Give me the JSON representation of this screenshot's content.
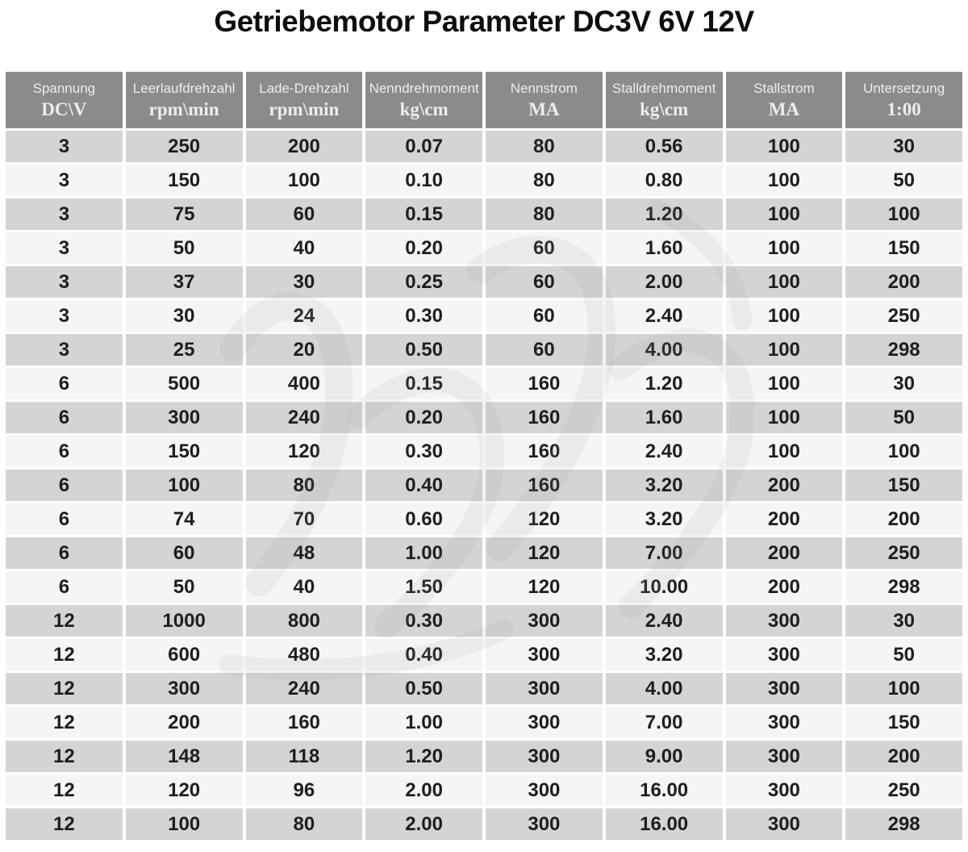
{
  "page_title": "Getriebemotor Parameter DC3V 6V 12V",
  "colors": {
    "header_bg": "#8b8b8b",
    "header_text": "#ededed",
    "row_dark": "#d4d4d4",
    "row_light": "#f5f5f5",
    "cell_text": "#1e1e1e",
    "title_text": "#0e0e0e"
  },
  "chart_data": {
    "type": "table",
    "title": "Getriebemotor Parameter DC3V 6V 12V",
    "columns": [
      {
        "label": "Spannung",
        "unit": "DC\\V"
      },
      {
        "label": "Leerlaufdrehzahl",
        "unit": "rpm\\min"
      },
      {
        "label": "Lade-Drehzahl",
        "unit": "rpm\\min"
      },
      {
        "label": "Nenndrehmoment",
        "unit": "kg\\cm"
      },
      {
        "label": "Nennstrom",
        "unit": "MA"
      },
      {
        "label": "Stalldrehmoment",
        "unit": "kg\\cm"
      },
      {
        "label": "Stallstrom",
        "unit": "MA"
      },
      {
        "label": "Untersetzung",
        "unit": "1:00"
      }
    ],
    "rows": [
      [
        "3",
        "250",
        "200",
        "0.07",
        "80",
        "0.56",
        "100",
        "30"
      ],
      [
        "3",
        "150",
        "100",
        "0.10",
        "80",
        "0.80",
        "100",
        "50"
      ],
      [
        "3",
        "75",
        "60",
        "0.15",
        "80",
        "1.20",
        "100",
        "100"
      ],
      [
        "3",
        "50",
        "40",
        "0.20",
        "60",
        "1.60",
        "100",
        "150"
      ],
      [
        "3",
        "37",
        "30",
        "0.25",
        "60",
        "2.00",
        "100",
        "200"
      ],
      [
        "3",
        "30",
        "24",
        "0.30",
        "60",
        "2.40",
        "100",
        "250"
      ],
      [
        "3",
        "25",
        "20",
        "0.50",
        "60",
        "4.00",
        "100",
        "298"
      ],
      [
        "6",
        "500",
        "400",
        "0.15",
        "160",
        "1.20",
        "100",
        "30"
      ],
      [
        "6",
        "300",
        "240",
        "0.20",
        "160",
        "1.60",
        "100",
        "50"
      ],
      [
        "6",
        "150",
        "120",
        "0.30",
        "160",
        "2.40",
        "100",
        "100"
      ],
      [
        "6",
        "100",
        "80",
        "0.40",
        "160",
        "3.20",
        "200",
        "150"
      ],
      [
        "6",
        "74",
        "70",
        "0.60",
        "120",
        "3.20",
        "200",
        "200"
      ],
      [
        "6",
        "60",
        "48",
        "1.00",
        "120",
        "7.00",
        "200",
        "250"
      ],
      [
        "6",
        "50",
        "40",
        "1.50",
        "120",
        "10.00",
        "200",
        "298"
      ],
      [
        "12",
        "1000",
        "800",
        "0.30",
        "300",
        "2.40",
        "300",
        "30"
      ],
      [
        "12",
        "600",
        "480",
        "0.40",
        "300",
        "3.20",
        "300",
        "50"
      ],
      [
        "12",
        "300",
        "240",
        "0.50",
        "300",
        "4.00",
        "300",
        "100"
      ],
      [
        "12",
        "200",
        "160",
        "1.00",
        "300",
        "7.00",
        "300",
        "150"
      ],
      [
        "12",
        "148",
        "118",
        "1.20",
        "300",
        "9.00",
        "300",
        "200"
      ],
      [
        "12",
        "120",
        "96",
        "2.00",
        "300",
        "16.00",
        "300",
        "250"
      ],
      [
        "12",
        "100",
        "80",
        "2.00",
        "300",
        "16.00",
        "300",
        "298"
      ]
    ]
  }
}
